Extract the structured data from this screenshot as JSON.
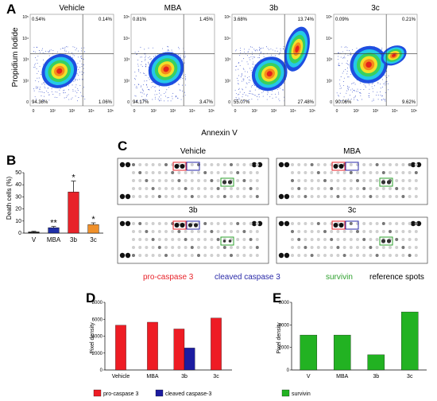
{
  "figure": {
    "panels": [
      "A",
      "B",
      "C",
      "D",
      "E"
    ]
  },
  "panel_a": {
    "ylabel": "Propidium Iodide",
    "xlabel": "Annexin V",
    "tick_labels": [
      "0",
      "10²",
      "10³",
      "10⁴",
      "10⁵"
    ],
    "plots": [
      {
        "title": "Vehicle",
        "q_ul": "0.54%",
        "q_ur": "0.14%",
        "q_ll": "94.36%",
        "q_lr": "1.06%"
      },
      {
        "title": "MBA",
        "q_ul": "0.81%",
        "q_ur": "1.45%",
        "q_ll": "94.17%",
        "q_lr": "3.47%"
      },
      {
        "title": "3b",
        "q_ul": "3.68%",
        "q_ur": "13.74%",
        "q_ll": "55.07%",
        "q_lr": "27.48%"
      },
      {
        "title": "3c",
        "q_ul": "0.09%",
        "q_ur": "0.21%",
        "q_ll": "90.06%",
        "q_lr": "9.62%"
      }
    ]
  },
  "panel_c": {
    "arrays": [
      {
        "title": "Vehicle"
      },
      {
        "title": "MBA"
      },
      {
        "title": "3b"
      },
      {
        "title": "3c"
      }
    ],
    "legend": [
      {
        "label": "pro-caspase 3",
        "color": "#e8232a"
      },
      {
        "label": "cleaved caspase 3",
        "color": "#2a2aa8"
      },
      {
        "label": "survivin",
        "color": "#2ea12e"
      },
      {
        "label": "reference spots",
        "color": "#000000"
      }
    ]
  },
  "chart_data": [
    {
      "panel": "B",
      "type": "bar",
      "categories": [
        "V",
        "MBA",
        "3b",
        "3c"
      ],
      "values": [
        1,
        4.5,
        34,
        7
      ],
      "errors": [
        0.5,
        1,
        9,
        1.5
      ],
      "colors": [
        "#1a1a1a",
        "#1f2fa8",
        "#e8232a",
        "#f0902a"
      ],
      "significance": [
        "",
        "**",
        "*",
        "*"
      ],
      "ylabel": "Death cells (%)",
      "ylim": [
        0,
        50
      ],
      "yticks": [
        0,
        10,
        20,
        30,
        40,
        50
      ]
    },
    {
      "panel": "D",
      "type": "bar",
      "categories": [
        "Vehicle",
        "MBA",
        "3b",
        "3c"
      ],
      "series": [
        {
          "name": "pro-caspase 3",
          "color": "#ee1c24",
          "values": [
            5300,
            5650,
            4850,
            6150
          ]
        },
        {
          "name": "cleaved caspase-3",
          "color": "#1c1ca0",
          "values": [
            null,
            null,
            2600,
            null
          ]
        }
      ],
      "ylabel": "Pixel density",
      "ylim": [
        0,
        8000
      ],
      "yticks": [
        0,
        2000,
        4000,
        6000,
        8000
      ]
    },
    {
      "panel": "E",
      "type": "bar",
      "categories": [
        "V",
        "MBA",
        "3b",
        "3c"
      ],
      "series": [
        {
          "name": "survivin",
          "color": "#22b222",
          "values": [
            3100,
            3100,
            1350,
            5150
          ]
        }
      ],
      "ylabel": "Pixel density",
      "ylim": [
        0,
        6000
      ],
      "yticks": [
        0,
        2000,
        4000,
        6000
      ]
    }
  ]
}
